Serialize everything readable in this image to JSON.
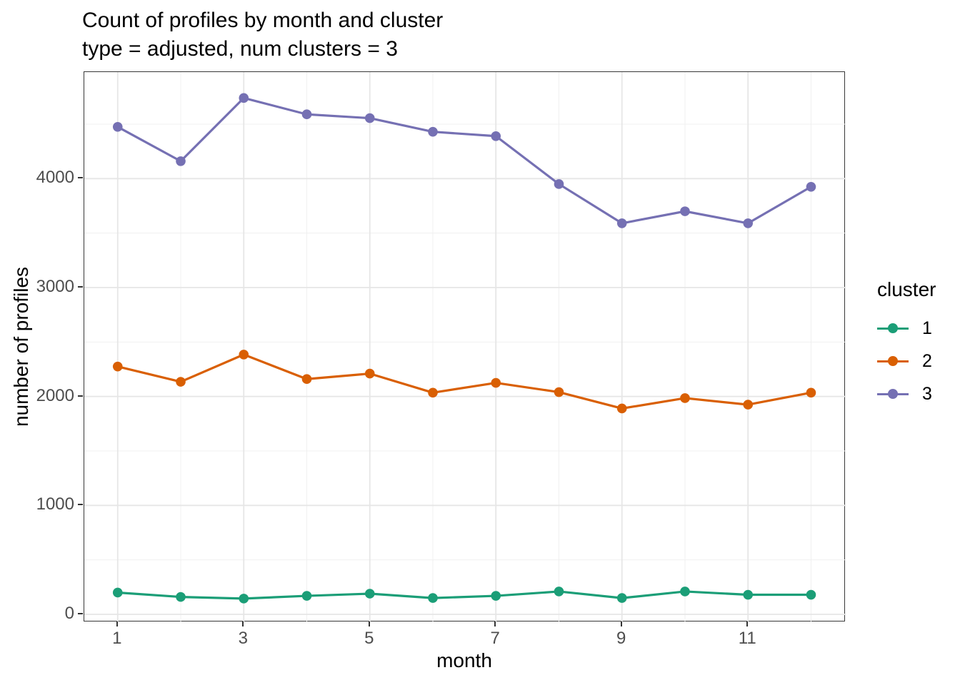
{
  "title": "Count of profiles by month and cluster",
  "subtitle": "type = adjusted, num clusters = 3",
  "axes": {
    "x": {
      "title": "month",
      "tick_labels": [
        "1",
        "3",
        "5",
        "7",
        "9",
        "11"
      ]
    },
    "y": {
      "title": "number of profiles",
      "tick_labels": [
        "0",
        "1000",
        "2000",
        "3000",
        "4000"
      ]
    }
  },
  "legend": {
    "title": "cluster",
    "items": [
      {
        "label": "1",
        "color": "#1B9E77"
      },
      {
        "label": "2",
        "color": "#D95F02"
      },
      {
        "label": "3",
        "color": "#7570B3"
      }
    ]
  },
  "chart_data": {
    "type": "line",
    "title": "Count of profiles by month and cluster",
    "subtitle": "type = adjusted, num clusters = 3",
    "xlabel": "month",
    "ylabel": "number of profiles",
    "x": [
      1,
      2,
      3,
      4,
      5,
      6,
      7,
      8,
      9,
      10,
      11,
      12
    ],
    "series": [
      {
        "name": "1",
        "color": "#1B9E77",
        "values": [
          200,
          160,
          145,
          170,
          190,
          150,
          170,
          210,
          150,
          210,
          180,
          180
        ]
      },
      {
        "name": "2",
        "color": "#D95F02",
        "values": [
          2275,
          2135,
          2385,
          2160,
          2210,
          2035,
          2125,
          2040,
          1890,
          1985,
          1925,
          2035
        ]
      },
      {
        "name": "3",
        "color": "#7570B3",
        "values": [
          4475,
          4160,
          4740,
          4590,
          4555,
          4430,
          4390,
          3950,
          3590,
          3700,
          3590,
          3925
        ]
      }
    ],
    "x_ticks": [
      1,
      3,
      5,
      7,
      9,
      11
    ],
    "y_ticks": [
      0,
      1000,
      2000,
      3000,
      4000
    ],
    "xlim": [
      0.47,
      12.55
    ],
    "ylim": [
      -72,
      4978
    ],
    "grid": "major+minor",
    "legend_position": "right",
    "legend_title": "cluster",
    "marker": "point",
    "grid_major_color": "#e6e6e6",
    "grid_minor_color": "#f0f0f0"
  }
}
